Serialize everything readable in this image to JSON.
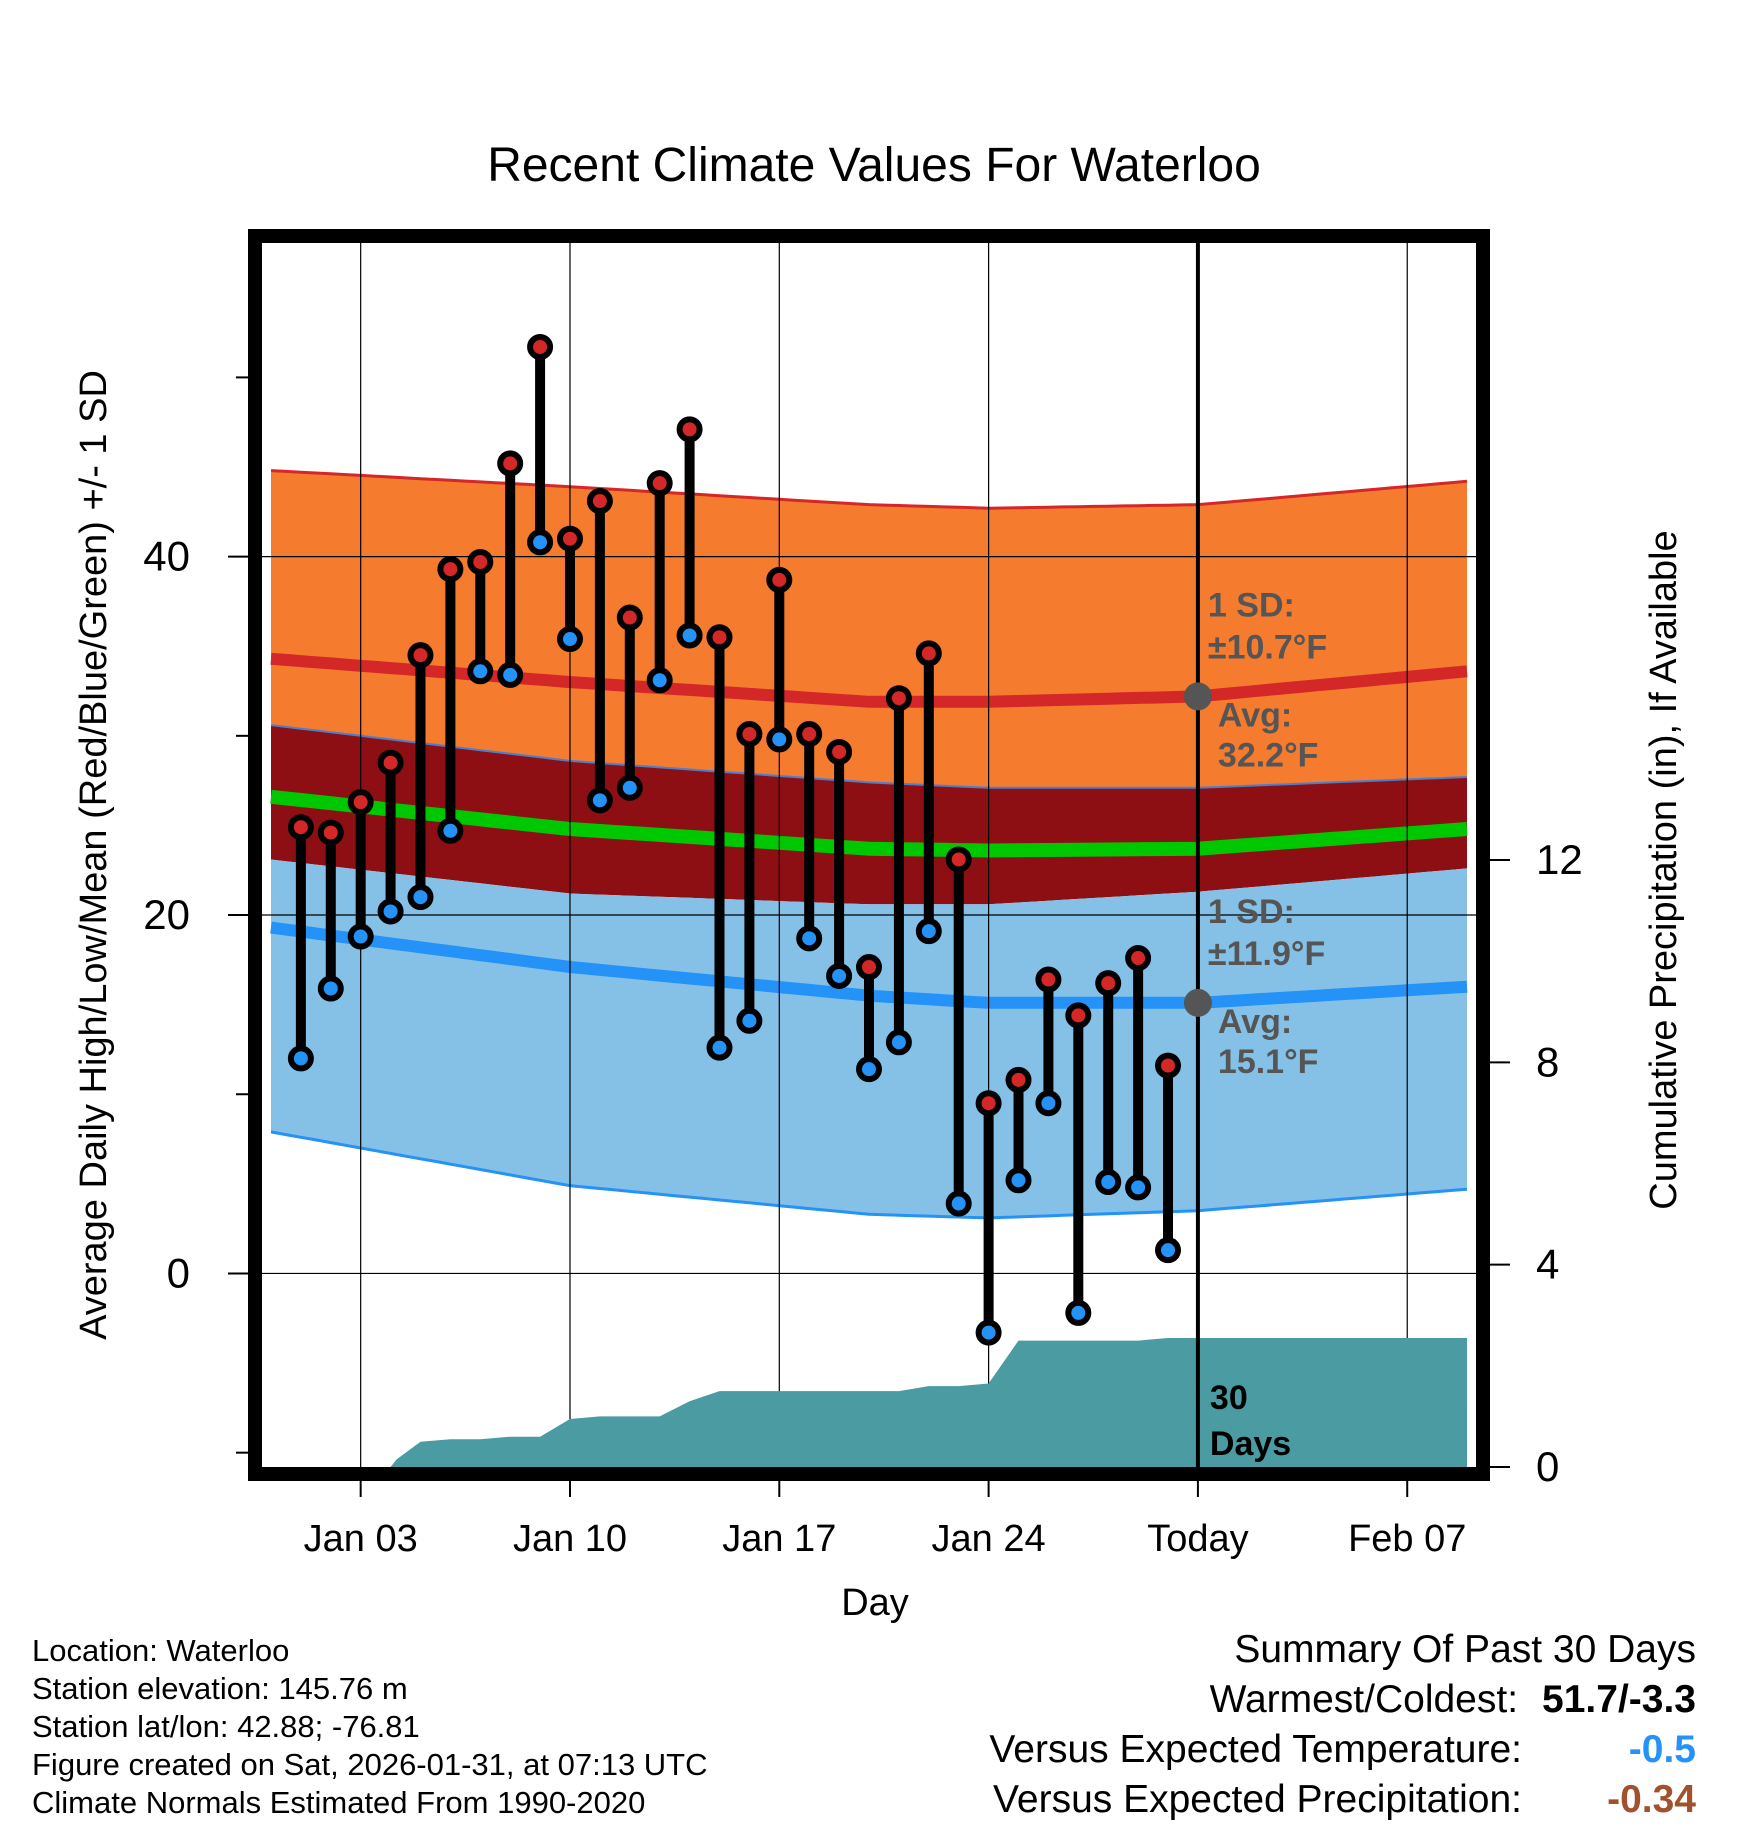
{
  "chart_data": {
    "type": "climate-range-lollipop",
    "title": "Recent Climate Values For Waterloo",
    "xlabel": "Day",
    "ylabel_left": "Average Daily High/Low/Mean (Red/Blue/Green) +/- 1 SD",
    "ylabel_right": "Cumulative Precipitation (in), If Available",
    "x_ticks": [
      {
        "day": 3,
        "label": "Jan 03"
      },
      {
        "day": 10,
        "label": "Jan 10"
      },
      {
        "day": 17,
        "label": "Jan 17"
      },
      {
        "day": 24,
        "label": "Jan 24"
      },
      {
        "day": 31,
        "label": "Today"
      },
      {
        "day": 38,
        "label": "Feb 07"
      }
    ],
    "xlim": [
      -0.3,
      40.3
    ],
    "left_y_ticks": [
      0,
      20,
      40
    ],
    "left_y_minor_ticks": [
      -10,
      10,
      30,
      50
    ],
    "ylim_left": [
      -10.8,
      57.5
    ],
    "right_y_ticks": [
      0,
      4,
      8,
      12
    ],
    "ylim_right": [
      0,
      24.2
    ],
    "today_day": 31,
    "high_avg": {
      "days": [
        0,
        10,
        20,
        24,
        31,
        40
      ],
      "values": [
        34.3,
        33.0,
        31.9,
        31.9,
        32.2,
        33.6
      ]
    },
    "high_upper": {
      "days": [
        0,
        10,
        20,
        24,
        31,
        40
      ],
      "values": [
        44.8,
        43.9,
        42.9,
        42.7,
        42.9,
        44.2
      ]
    },
    "high_lower": {
      "days": [
        0,
        10,
        20,
        24,
        31,
        40
      ],
      "values": [
        30.6,
        28.6,
        27.4,
        27.1,
        27.1,
        27.7
      ]
    },
    "mean_avg": {
      "days": [
        0,
        10,
        20,
        24,
        31,
        40
      ],
      "values": [
        26.6,
        24.8,
        23.7,
        23.6,
        23.7,
        24.8
      ]
    },
    "low_upper": {
      "days": [
        0,
        10,
        20,
        24,
        31,
        40
      ],
      "values": [
        23.1,
        21.2,
        20.6,
        20.6,
        21.3,
        22.6
      ]
    },
    "low_avg": {
      "days": [
        0,
        10,
        20,
        24,
        31,
        40
      ],
      "values": [
        19.3,
        17.1,
        15.5,
        15.1,
        15.1,
        16.0
      ]
    },
    "low_lower": {
      "days": [
        0,
        10,
        20,
        24,
        31,
        40
      ],
      "values": [
        7.9,
        4.9,
        3.3,
        3.1,
        3.5,
        4.7
      ]
    },
    "observations": {
      "days": [
        1,
        2,
        3,
        4,
        5,
        6,
        7,
        8,
        9,
        10,
        11,
        12,
        13,
        14,
        15,
        16,
        17,
        18,
        19,
        20,
        21,
        22,
        23,
        24,
        25,
        26,
        27,
        28,
        29,
        30
      ],
      "highs": [
        24.9,
        24.6,
        26.3,
        28.5,
        34.5,
        39.3,
        39.7,
        45.2,
        51.7,
        41.0,
        43.1,
        36.6,
        44.1,
        47.1,
        35.5,
        30.1,
        38.7,
        30.1,
        29.1,
        17.1,
        32.1,
        34.6,
        23.1,
        9.5,
        10.8,
        16.4,
        14.4,
        16.2,
        17.6,
        11.6
      ],
      "lows": [
        12.0,
        15.9,
        18.8,
        20.2,
        21.0,
        24.7,
        33.6,
        33.4,
        40.8,
        35.4,
        26.4,
        27.1,
        33.1,
        35.6,
        12.6,
        14.1,
        29.8,
        18.7,
        16.6,
        11.4,
        12.9,
        19.1,
        3.9,
        -3.3,
        5.2,
        9.5,
        -2.2,
        5.1,
        4.8,
        1.3
      ]
    },
    "precip": {
      "days": [
        0,
        4,
        4.2,
        5,
        6,
        7,
        8,
        9,
        10,
        11,
        12,
        13,
        14,
        15,
        16,
        17,
        18,
        19,
        20,
        21,
        22,
        23,
        24,
        25,
        26,
        27,
        28,
        29,
        30,
        31,
        40
      ],
      "values": [
        0,
        0,
        0.15,
        0.5,
        0.55,
        0.55,
        0.6,
        0.6,
        0.95,
        1.0,
        1.0,
        1.0,
        1.3,
        1.5,
        1.5,
        1.5,
        1.5,
        1.5,
        1.5,
        1.5,
        1.6,
        1.6,
        1.65,
        2.5,
        2.5,
        2.5,
        2.5,
        2.5,
        2.55,
        2.55,
        2.55
      ]
    },
    "annotations": {
      "high_sd_label": "1 SD:",
      "high_sd_value": "±10.7°F",
      "high_avg_label": "Avg:",
      "high_avg_value": "32.2°F",
      "low_sd_label": "1 SD:",
      "low_sd_value": "±11.9°F",
      "low_avg_label": "Avg:",
      "low_avg_value": "15.1°F",
      "window_label_1": "30",
      "window_label_2": "Days"
    },
    "colors": {
      "high_band": "#f57b2e",
      "high_line": "#d42727",
      "mean_band": "#8d0f14",
      "mean_line": "#00c800",
      "low_band": "#85c1e7",
      "low_line": "#2592f7",
      "precip": "#4a9ba2",
      "high_marker": "#d42727",
      "low_marker": "#2592f7",
      "annotation": "#555555"
    }
  },
  "info": {
    "location": "Location: Waterloo",
    "elevation": "Station elevation: 145.76 m",
    "latlon": "Station lat/lon: 42.88; -76.81",
    "created": "Figure created on Sat, 2026-01-31, at 07:13 UTC",
    "normals": "Climate Normals Estimated From 1990-2020"
  },
  "summary": {
    "heading": "Summary Of Past 30 Days",
    "warm_cold_label": "Warmest/Coldest:",
    "warm_cold_value": "51.7/-3.3",
    "temp_label": "Versus Expected Temperature:",
    "temp_value": "-0.5",
    "temp_color": "#2592f7",
    "precip_label": "Versus Expected Precipitation:",
    "precip_value": "-0.34",
    "precip_color": "#a0522d"
  }
}
